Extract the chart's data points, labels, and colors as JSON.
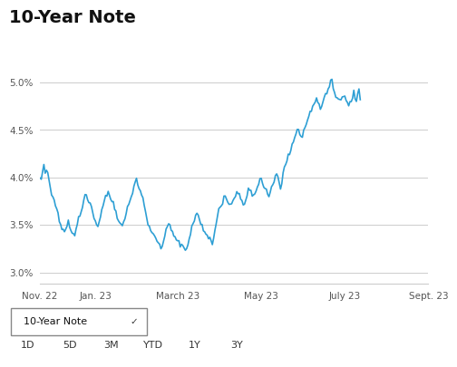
{
  "title": "10-Year Note",
  "title_fontsize": 14,
  "title_fontweight": "bold",
  "line_color": "#2e9fd4",
  "line_width": 1.2,
  "background_color": "#ffffff",
  "grid_color": "#cccccc",
  "yticks": [
    3.0,
    3.5,
    4.0,
    4.5,
    5.0
  ],
  "ytick_labels": [
    "3.0%",
    "3.5%",
    "4.0%",
    "4.5%",
    "5.0%"
  ],
  "ylim": [
    2.88,
    5.18
  ],
  "xtick_labels": [
    "Nov. 22",
    "Jan. 23",
    "March 23",
    "May 23",
    "July 23",
    "Sept. 23"
  ],
  "dropdown_label": "10-Year Note",
  "dropdown_symbol": "✓",
  "tab_labels": [
    "1D",
    "5D",
    "3M",
    "YTD",
    "1Y",
    "3Y"
  ],
  "active_tab": "1Y",
  "active_tab_bg": "#d8d8d8",
  "data_points": [
    3.99,
    4.0,
    4.05,
    4.12,
    4.08,
    4.1,
    4.05,
    3.98,
    3.9,
    3.83,
    3.78,
    3.75,
    3.7,
    3.65,
    3.62,
    3.55,
    3.5,
    3.47,
    3.44,
    3.43,
    3.46,
    3.5,
    3.53,
    3.48,
    3.45,
    3.42,
    3.4,
    3.38,
    3.45,
    3.5,
    3.55,
    3.6,
    3.65,
    3.7,
    3.75,
    3.8,
    3.82,
    3.78,
    3.75,
    3.72,
    3.68,
    3.62,
    3.58,
    3.54,
    3.5,
    3.48,
    3.52,
    3.58,
    3.65,
    3.7,
    3.75,
    3.8,
    3.83,
    3.86,
    3.82,
    3.78,
    3.75,
    3.72,
    3.68,
    3.63,
    3.6,
    3.55,
    3.52,
    3.5,
    3.48,
    3.52,
    3.57,
    3.63,
    3.68,
    3.72,
    3.78,
    3.82,
    3.85,
    3.9,
    3.95,
    3.98,
    3.93,
    3.88,
    3.85,
    3.82,
    3.78,
    3.72,
    3.65,
    3.58,
    3.52,
    3.48,
    3.45,
    3.42,
    3.4,
    3.38,
    3.35,
    3.33,
    3.32,
    3.3,
    3.28,
    3.3,
    3.35,
    3.4,
    3.45,
    3.5,
    3.52,
    3.48,
    3.45,
    3.42,
    3.4,
    3.38,
    3.36,
    3.34,
    3.32,
    3.3,
    3.29,
    3.28,
    3.27,
    3.26,
    3.25,
    3.3,
    3.35,
    3.4,
    3.46,
    3.52,
    3.56,
    3.6,
    3.62,
    3.58,
    3.54,
    3.5,
    3.48,
    3.46,
    3.44,
    3.42,
    3.4,
    3.38,
    3.36,
    3.34,
    3.32,
    3.38,
    3.44,
    3.5,
    3.56,
    3.62,
    3.68,
    3.72,
    3.76,
    3.8,
    3.82,
    3.78,
    3.75,
    3.72,
    3.7,
    3.72,
    3.76,
    3.8,
    3.83,
    3.86,
    3.83,
    3.8,
    3.77,
    3.74,
    3.72,
    3.74,
    3.78,
    3.82,
    3.85,
    3.88,
    3.85,
    3.82,
    3.8,
    3.82,
    3.86,
    3.9,
    3.94,
    3.98,
    4.0,
    3.96,
    3.92,
    3.88,
    3.85,
    3.82,
    3.8,
    3.84,
    3.88,
    3.92,
    3.96,
    4.0,
    4.03,
    3.98,
    3.94,
    3.9,
    3.96,
    4.02,
    4.08,
    4.14,
    4.18,
    4.22,
    4.26,
    4.3,
    4.34,
    4.38,
    4.42,
    4.46,
    4.5,
    4.48,
    4.45,
    4.42,
    4.46,
    4.5,
    4.54,
    4.58,
    4.62,
    4.65,
    4.68,
    4.72,
    4.75,
    4.78,
    4.8,
    4.82,
    4.78,
    4.75,
    4.72,
    4.76,
    4.8,
    4.84,
    4.88,
    4.9,
    4.93,
    4.95,
    4.98,
    5.0,
    4.95,
    4.9,
    4.87,
    4.85,
    4.82,
    4.8,
    4.83,
    4.86,
    4.89,
    4.86,
    4.83,
    4.8,
    4.77,
    4.8,
    4.83,
    4.86,
    4.88,
    4.85,
    4.82,
    4.85,
    4.88,
    4.84
  ]
}
